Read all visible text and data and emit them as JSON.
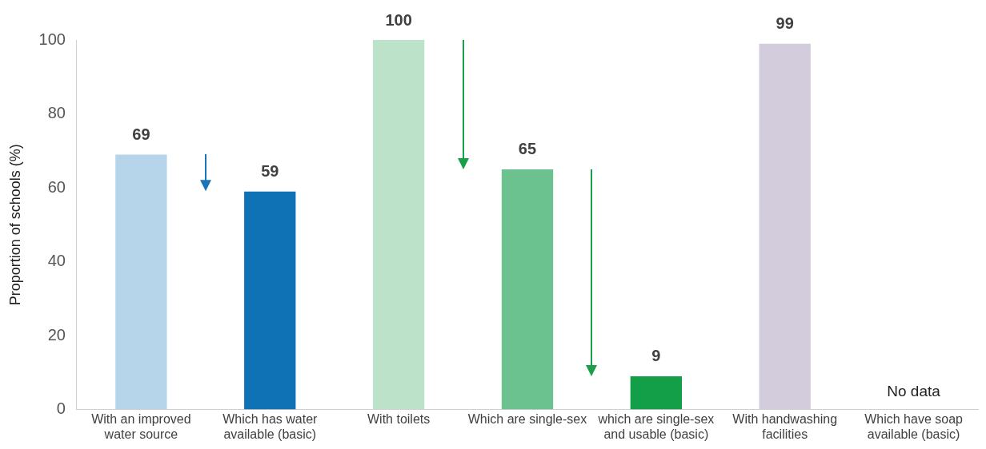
{
  "chart_data": {
    "type": "bar",
    "ylabel": "Proportion of schools (%)",
    "categories": [
      "With an improved water source",
      "Which has water available (basic)",
      "With toilets",
      "Which are single-sex",
      "which are single-sex and usable (basic)",
      "With handwashing facilities",
      "Which have soap available (basic)"
    ],
    "values": [
      69,
      59,
      100,
      65,
      9,
      99,
      null
    ],
    "colors": [
      "#b6d5ea",
      "#0f72b5",
      "#bce3c9",
      "#6cc28f",
      "#139f48",
      "#d3ccdd",
      "#d3ccdd"
    ],
    "ylim": [
      0,
      100
    ],
    "yticks": [
      0,
      20,
      40,
      60,
      80,
      100
    ],
    "grid": false,
    "legend": false,
    "data_labels": true,
    "annotations": [
      "No data"
    ]
  }
}
